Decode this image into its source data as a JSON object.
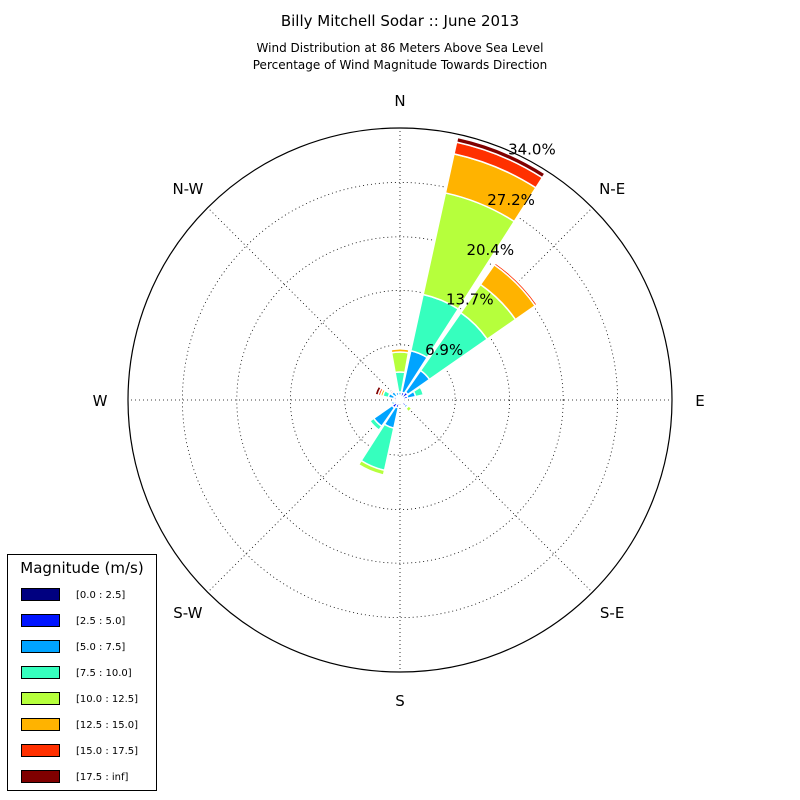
{
  "title": "Billy Mitchell Sodar :: June 2013",
  "subtitle_lines": [
    "Wind Distribution at 86 Meters Above Sea Level",
    "Percentage of Wind Magnitude Towards Direction"
  ],
  "legend": {
    "title": "Magnitude (m/s)",
    "entries": [
      {
        "label": "[0.0 : 2.5]",
        "color": "#000080"
      },
      {
        "label": "[2.5 : 5.0]",
        "color": "#0014ff"
      },
      {
        "label": "[5.0 : 7.5]",
        "color": "#00a4ff"
      },
      {
        "label": "[7.5 : 10.0]",
        "color": "#36ffbe"
      },
      {
        "label": "[10.0 : 12.5]",
        "color": "#b6ff3c"
      },
      {
        "label": "[12.5 : 15.0]",
        "color": "#ffb300"
      },
      {
        "label": "[15.0 : 17.5]",
        "color": "#ff3000"
      },
      {
        "label": "[17.5 : inf]",
        "color": "#800000"
      }
    ]
  },
  "chart_data": {
    "type": "windrose",
    "direction_labels": [
      "N",
      "N-E",
      "E",
      "S-E",
      "S",
      "S-W",
      "W",
      "N-W"
    ],
    "radial_tick_labels": [
      "6.9%",
      "13.7%",
      "20.4%",
      "27.2%",
      "34.0%"
    ],
    "radial_ticks": [
      6.9,
      13.7,
      20.4,
      27.2,
      34.0
    ],
    "rmax": 34.0,
    "grid": true,
    "legend_position": "bottom-left",
    "sector_width_deg": 22.5,
    "sectors": [
      {
        "direction_deg": 0,
        "cumulative": [
          0.3,
          0.6,
          1.0,
          3.5,
          6.0,
          6.4,
          6.5,
          6.6
        ]
      },
      {
        "direction_deg": 22.5,
        "cumulative": [
          0.3,
          1.0,
          6.3,
          13.5,
          26.5,
          31.5,
          33.0,
          33.6
        ]
      },
      {
        "direction_deg": 45,
        "cumulative": [
          0.5,
          1.2,
          4.5,
          13.3,
          17.6,
          20.6,
          20.9,
          21.0
        ]
      },
      {
        "direction_deg": 67.5,
        "cumulative": [
          0.4,
          1.0,
          2.0,
          3.0,
          3.0,
          3.0,
          3.0,
          3.0
        ]
      },
      {
        "direction_deg": 90,
        "cumulative": [
          0.3,
          0.4,
          0.5,
          0.5,
          0.5,
          0.5,
          0.5,
          0.5
        ]
      },
      {
        "direction_deg": 112.5,
        "cumulative": [
          0.3,
          0.4,
          0.4,
          0.4,
          0.4,
          0.4,
          0.4,
          0.4
        ]
      },
      {
        "direction_deg": 135,
        "cumulative": [
          0.4,
          0.9,
          1.2,
          1.3,
          1.8,
          1.8,
          1.8,
          1.8
        ]
      },
      {
        "direction_deg": 157.5,
        "cumulative": [
          0.3,
          0.5,
          0.6,
          0.6,
          0.6,
          0.6,
          0.6,
          0.6
        ]
      },
      {
        "direction_deg": 180,
        "cumulative": [
          0.2,
          0.3,
          0.3,
          0.3,
          0.3,
          0.3,
          0.3,
          0.3
        ]
      },
      {
        "direction_deg": 202.5,
        "cumulative": [
          0.5,
          1.0,
          3.6,
          9.0,
          9.6,
          9.6,
          9.6,
          9.6
        ]
      },
      {
        "direction_deg": 225,
        "cumulative": [
          0.6,
          1.2,
          4.0,
          4.6,
          4.7,
          4.7,
          4.7,
          4.7
        ]
      },
      {
        "direction_deg": 247.5,
        "cumulative": [
          0.5,
          0.8,
          1.1,
          1.1,
          1.1,
          1.1,
          1.1,
          1.1
        ]
      },
      {
        "direction_deg": 270,
        "cumulative": [
          0.3,
          0.4,
          0.5,
          0.5,
          0.5,
          0.5,
          0.5,
          0.5
        ]
      },
      {
        "direction_deg": 292.5,
        "cumulative": [
          0.4,
          0.8,
          1.5,
          2.2,
          2.2,
          2.5,
          2.8,
          3.2
        ]
      },
      {
        "direction_deg": 315,
        "cumulative": [
          0.3,
          0.6,
          1.3,
          1.3,
          1.3,
          1.3,
          1.5,
          1.5
        ]
      },
      {
        "direction_deg": 337.5,
        "cumulative": [
          0.3,
          0.6,
          1.0,
          1.0,
          1.0,
          1.0,
          1.0,
          1.0
        ]
      }
    ]
  }
}
